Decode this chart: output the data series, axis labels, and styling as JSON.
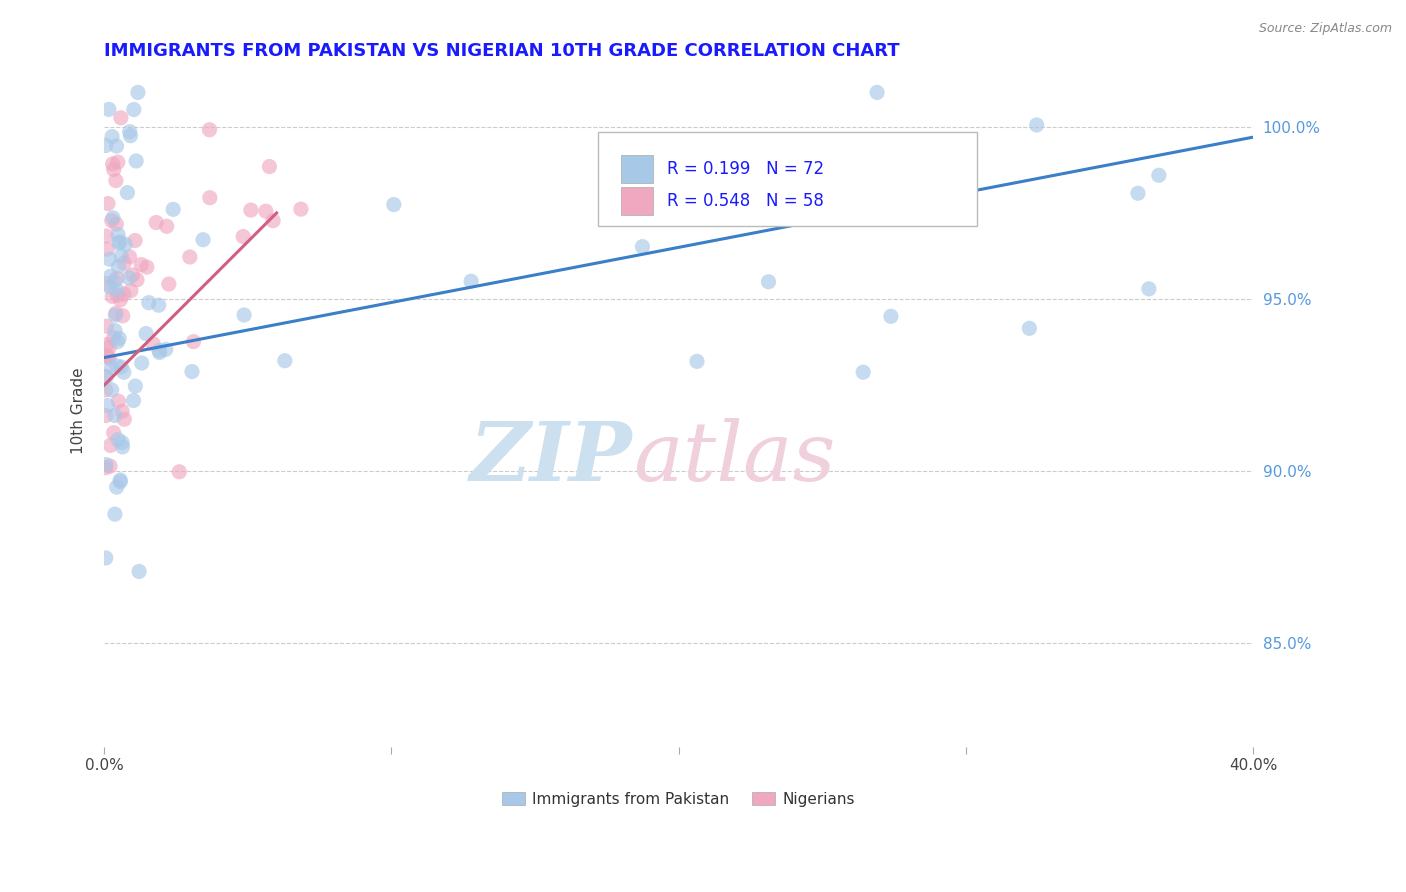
{
  "title": "IMMIGRANTS FROM PAKISTAN VS NIGERIAN 10TH GRADE CORRELATION CHART",
  "source_text": "Source: ZipAtlas.com",
  "ylabel": "10th Grade",
  "x_range": [
    0.0,
    40.0
  ],
  "y_range": [
    82.0,
    101.5
  ],
  "blue_R": 0.199,
  "blue_N": 72,
  "pink_R": 0.548,
  "pink_N": 58,
  "blue_color": "#a8c8e8",
  "blue_line_color": "#3a7fc8",
  "pink_color": "#f0a8c0",
  "pink_line_color": "#d06080",
  "scatter_alpha": 0.65,
  "scatter_size": 120,
  "legend_blue_label": "Immigrants from Pakistan",
  "legend_pink_label": "Nigerians",
  "watermark_zip": "ZIP",
  "watermark_atlas": "atlas",
  "background_color": "#ffffff",
  "grid_color": "#cccccc",
  "title_color": "#1a1aff",
  "right_axis_color": "#5599dd",
  "blue_line_x0": 0.0,
  "blue_line_y0": 93.3,
  "blue_line_x1": 40.0,
  "blue_line_y1": 99.7,
  "pink_line_x0": 0.0,
  "pink_line_y0": 92.5,
  "pink_line_x1": 6.0,
  "pink_line_y1": 97.5
}
